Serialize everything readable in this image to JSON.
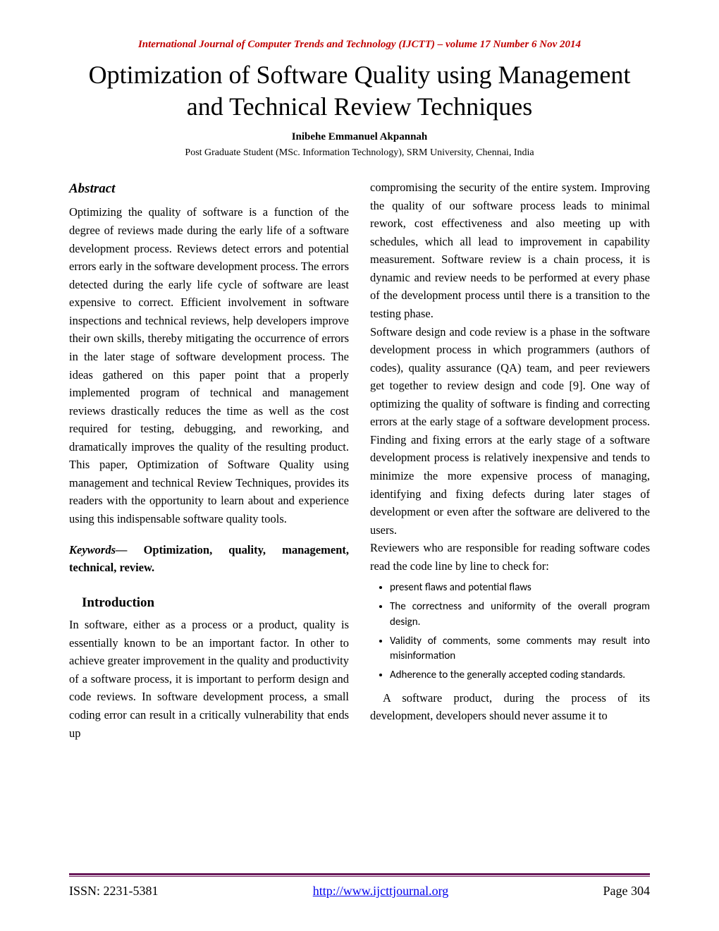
{
  "journal_header": "International Journal of Computer Trends and Technology (IJCTT) – volume 17 Number 6 Nov 2014",
  "title": "Optimization of Software Quality using Management and Technical Review Techniques",
  "author": "Inibehe Emmanuel Akpannah",
  "affiliation": "Post Graduate Student (MSc. Information Technology), SRM University, Chennai, India",
  "abstract_heading": "Abstract",
  "abstract_body": "Optimizing the quality of software is a function of the degree of reviews made during the early life of a software development process. Reviews detect errors and potential errors early in the software development process. The errors detected during the early life cycle of software are least expensive to correct. Efficient involvement in software inspections and technical reviews, help developers improve their own skills, thereby mitigating the occurrence of errors in the later stage of software development process. The ideas gathered on this paper point that a properly implemented program of technical and management reviews drastically reduces the time as well as the cost required for testing, debugging, and reworking, and dramatically improves the quality of the resulting product. This paper, Optimization of Software Quality using management and technical Review Techniques, provides its readers with the opportunity to learn about and experience using this indispensable software quality tools.",
  "keywords_label": "Keywords—",
  "keywords_list": " Optimization, quality, management, technical, review.",
  "intro_heading": "Introduction",
  "intro_col1": "In software, either as a process or a product, quality is essentially known to be an important factor. In other to achieve greater improvement in the quality and productivity of a software process, it is important to perform design and code reviews. In software development process, a small coding error can result in a critically vulnerability that ends up",
  "col2_p1": "compromising the security of the entire system. Improving the quality of our software process leads to minimal rework, cost effectiveness and also meeting up with schedules, which all lead to improvement in capability measurement. Software review is a chain process, it is dynamic and review needs to be performed at every phase of the development process until there is a transition to the testing phase.",
  "col2_p2": "Software design and code review is a phase in the software development process in which programmers (authors of codes), quality assurance (QA) team, and peer reviewers get together to review design and code [9]. One way of optimizing the quality of software is finding and correcting errors at the early stage of a software development process.  Finding and fixing errors at the early stage of a software development process is relatively inexpensive and tends to minimize the more expensive process of managing, identifying and fixing defects during later stages of development or even after the software are delivered to the users.",
  "col2_p3": "Reviewers who are responsible for reading software codes read the code line by line to check for:",
  "bullets": {
    "b1": "present flaws and potential flaws",
    "b2": "The correctness and uniformity of the overall program design.",
    "b3": "Validity of comments, some comments may result into misinformation",
    "b4": "Adherence to the generally accepted coding standards."
  },
  "col2_p4": "A software product, during the process of its development, developers should never assume it to",
  "footer": {
    "issn": "ISSN: 2231-5381",
    "url": "http://www.ijcttjournal.org",
    "page": "Page 304"
  }
}
